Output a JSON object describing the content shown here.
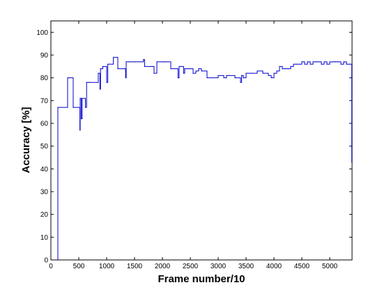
{
  "chart_data": {
    "type": "line",
    "title": "",
    "xlabel": "Frame number/10",
    "ylabel": "Accuracy [%]",
    "xlim": [
      0,
      5400
    ],
    "ylim": [
      0,
      105
    ],
    "xticks": [
      0,
      500,
      1000,
      1500,
      2000,
      2500,
      3000,
      3500,
      4000,
      4500,
      5000
    ],
    "yticks": [
      0,
      10,
      20,
      30,
      40,
      50,
      60,
      70,
      80,
      90,
      100
    ],
    "grid": false,
    "legend": "none",
    "series": [
      {
        "color": "#0000cc",
        "step": true,
        "x": [
          120,
          125,
          300,
          400,
          520,
          525,
          545,
          560,
          620,
          640,
          680,
          850,
          880,
          890,
          930,
          1000,
          1020,
          1060,
          1120,
          1200,
          1320,
          1340,
          1350,
          1400,
          1500,
          1660,
          1680,
          1800,
          1830,
          1850,
          1900,
          2000,
          2050,
          2150,
          2250,
          2280,
          2300,
          2380,
          2400,
          2500,
          2550,
          2600,
          2650,
          2700,
          2800,
          2900,
          3000,
          3100,
          3150,
          3200,
          3300,
          3400,
          3420,
          3450,
          3500,
          3600,
          3700,
          3800,
          3900,
          3950,
          4000,
          4050,
          4100,
          4150,
          4200,
          4250,
          4300,
          4350,
          4400,
          4450,
          4500,
          4550,
          4600,
          4650,
          4700,
          4750,
          4800,
          4850,
          4900,
          4950,
          5000,
          5050,
          5100,
          5150,
          5200,
          5250,
          5300,
          5350,
          5390,
          5395
        ],
        "y": [
          0,
          67,
          80,
          67,
          57,
          71,
          62,
          71,
          67,
          78,
          78,
          82,
          75,
          84,
          85,
          78,
          86,
          86,
          89,
          84,
          84,
          80,
          87,
          87,
          87,
          88,
          85,
          85,
          85,
          82,
          87,
          87,
          87,
          84,
          84,
          80,
          85,
          82,
          84,
          84,
          82,
          83,
          84,
          83,
          80,
          80,
          81,
          80,
          81,
          81,
          80,
          78,
          81,
          80,
          82,
          82,
          83,
          82,
          81,
          80,
          82,
          83,
          85,
          84,
          84,
          84,
          85,
          86,
          86,
          86,
          87,
          86,
          87,
          86,
          87,
          87,
          87,
          86,
          87,
          86,
          87,
          87,
          87,
          87,
          86,
          87,
          86,
          86,
          86,
          43
        ]
      }
    ]
  }
}
